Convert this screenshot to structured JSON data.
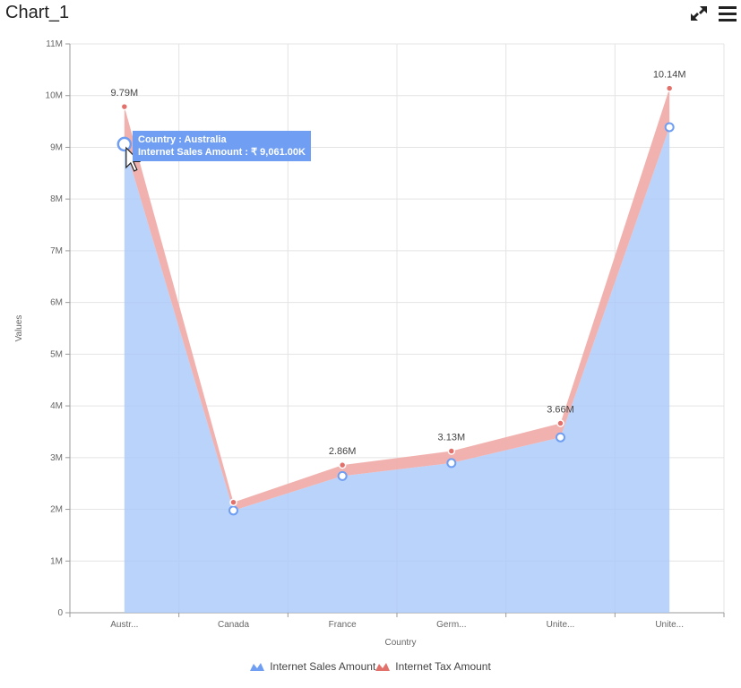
{
  "header": {
    "title": "Chart_1",
    "expand_icon": "expand-icon",
    "menu_icon": "hamburger-menu-icon"
  },
  "tooltip": {
    "line1": "Country : Australia",
    "line2": "Internet Sales Amount : ₹ 9,061.00K"
  },
  "colors": {
    "sales": "#a9c8fa",
    "sales_line": "#8fb3f5",
    "sales_marker": "#6f9ef2",
    "tax": "#f0aaa6",
    "tax_marker": "#e2706b",
    "grid": "#e4e4e4",
    "tooltip_bg": "#6f9ef2"
  },
  "chart_data": {
    "type": "area",
    "stacked": true,
    "categories": [
      "Austr...",
      "Canada",
      "France",
      "Germ...",
      "Unite...",
      "Unite..."
    ],
    "series": [
      {
        "name": "Internet Sales Amount",
        "values": [
          9061000,
          1977844,
          2644018,
          2894312,
          3391712,
          9389790
        ]
      },
      {
        "name": "Internet Tax Amount",
        "values": [
          724880,
          158228,
          211521,
          231545,
          271337,
          751183
        ]
      }
    ],
    "data_labels": [
      "9.79M",
      "",
      "2.86M",
      "3.13M",
      "3.66M",
      "10.14M"
    ],
    "xlabel": "Country",
    "ylabel": "Values",
    "ylim": [
      0,
      11000000
    ],
    "yticks": [
      "0",
      "1M",
      "2M",
      "3M",
      "4M",
      "5M",
      "6M",
      "7M",
      "8M",
      "9M",
      "10M",
      "11M"
    ],
    "grid": true,
    "legend_position": "bottom"
  }
}
